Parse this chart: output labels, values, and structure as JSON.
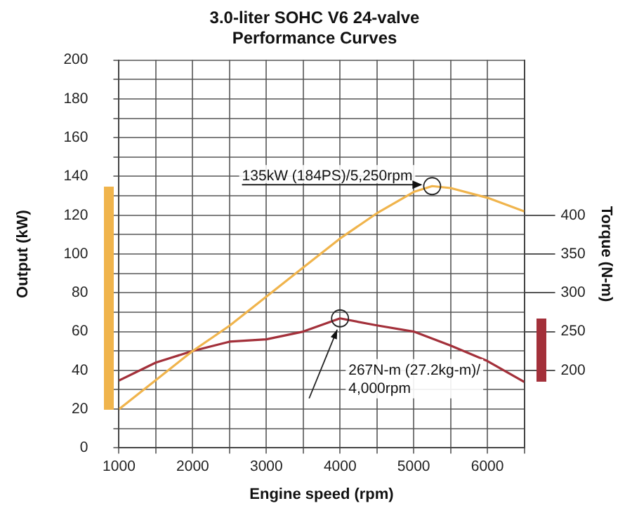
{
  "chart_data": {
    "type": "line",
    "title": "3.0-liter SOHC V6 24-valve\nPerformance Curves",
    "xlabel": "Engine speed (rpm)",
    "ylabel": "Output (kW)",
    "y2label": "Torque (N-m)",
    "xlim": [
      1000,
      6500
    ],
    "xticks": [
      1000,
      {
        "value": 1500,
        "label": null
      },
      2000,
      {
        "value": 2500,
        "label": null
      },
      3000,
      {
        "value": 3500,
        "label": null
      },
      4000,
      {
        "value": 4500,
        "label": null
      },
      5000,
      {
        "value": 5500,
        "label": null
      },
      6000,
      {
        "value": 6500,
        "label": null
      }
    ],
    "ylim": [
      0,
      200
    ],
    "yticks": [
      0,
      {
        "value": 10,
        "label": null
      },
      20,
      {
        "value": 30,
        "label": null
      },
      40,
      {
        "value": 50,
        "label": null
      },
      60,
      {
        "value": 70,
        "label": null
      },
      80,
      {
        "value": 90,
        "label": null
      },
      100,
      {
        "value": 110,
        "label": null
      },
      120,
      {
        "value": 130,
        "label": null
      },
      140,
      {
        "value": 150,
        "label": null
      },
      160,
      {
        "value": 170,
        "label": null
      },
      180,
      {
        "value": 190,
        "label": null
      },
      200
    ],
    "y2lim": [
      100,
      600
    ],
    "y2ticks": [
      200,
      250,
      300,
      350,
      400
    ],
    "grid": true,
    "legend": false,
    "marker": "none",
    "line_style": "solid",
    "series": [
      {
        "color": "#f0b44c",
        "x": [
          1000,
          1500,
          2000,
          2500,
          3000,
          3500,
          4000,
          4500,
          5000,
          5250,
          5500,
          6000,
          6500
        ],
        "values": [
          20,
          35,
          50,
          63,
          78,
          93,
          108,
          121,
          132,
          135,
          134,
          129,
          122
        ]
      },
      {
        "color": "#a3303a",
        "axis": "y2",
        "x": [
          1000,
          1500,
          2000,
          2500,
          3000,
          3500,
          4000,
          4500,
          5000,
          5500,
          6000,
          6500
        ],
        "values": [
          187,
          210,
          225,
          237,
          240,
          250,
          267,
          258,
          250,
          232,
          212,
          185
        ]
      }
    ],
    "annotations": [
      {
        "text": "135kW (184PS)/5,250rpm",
        "x": 5250,
        "y": 135
      },
      "267N-m (27.2kg-m)/\n4,000rpm"
    ]
  }
}
